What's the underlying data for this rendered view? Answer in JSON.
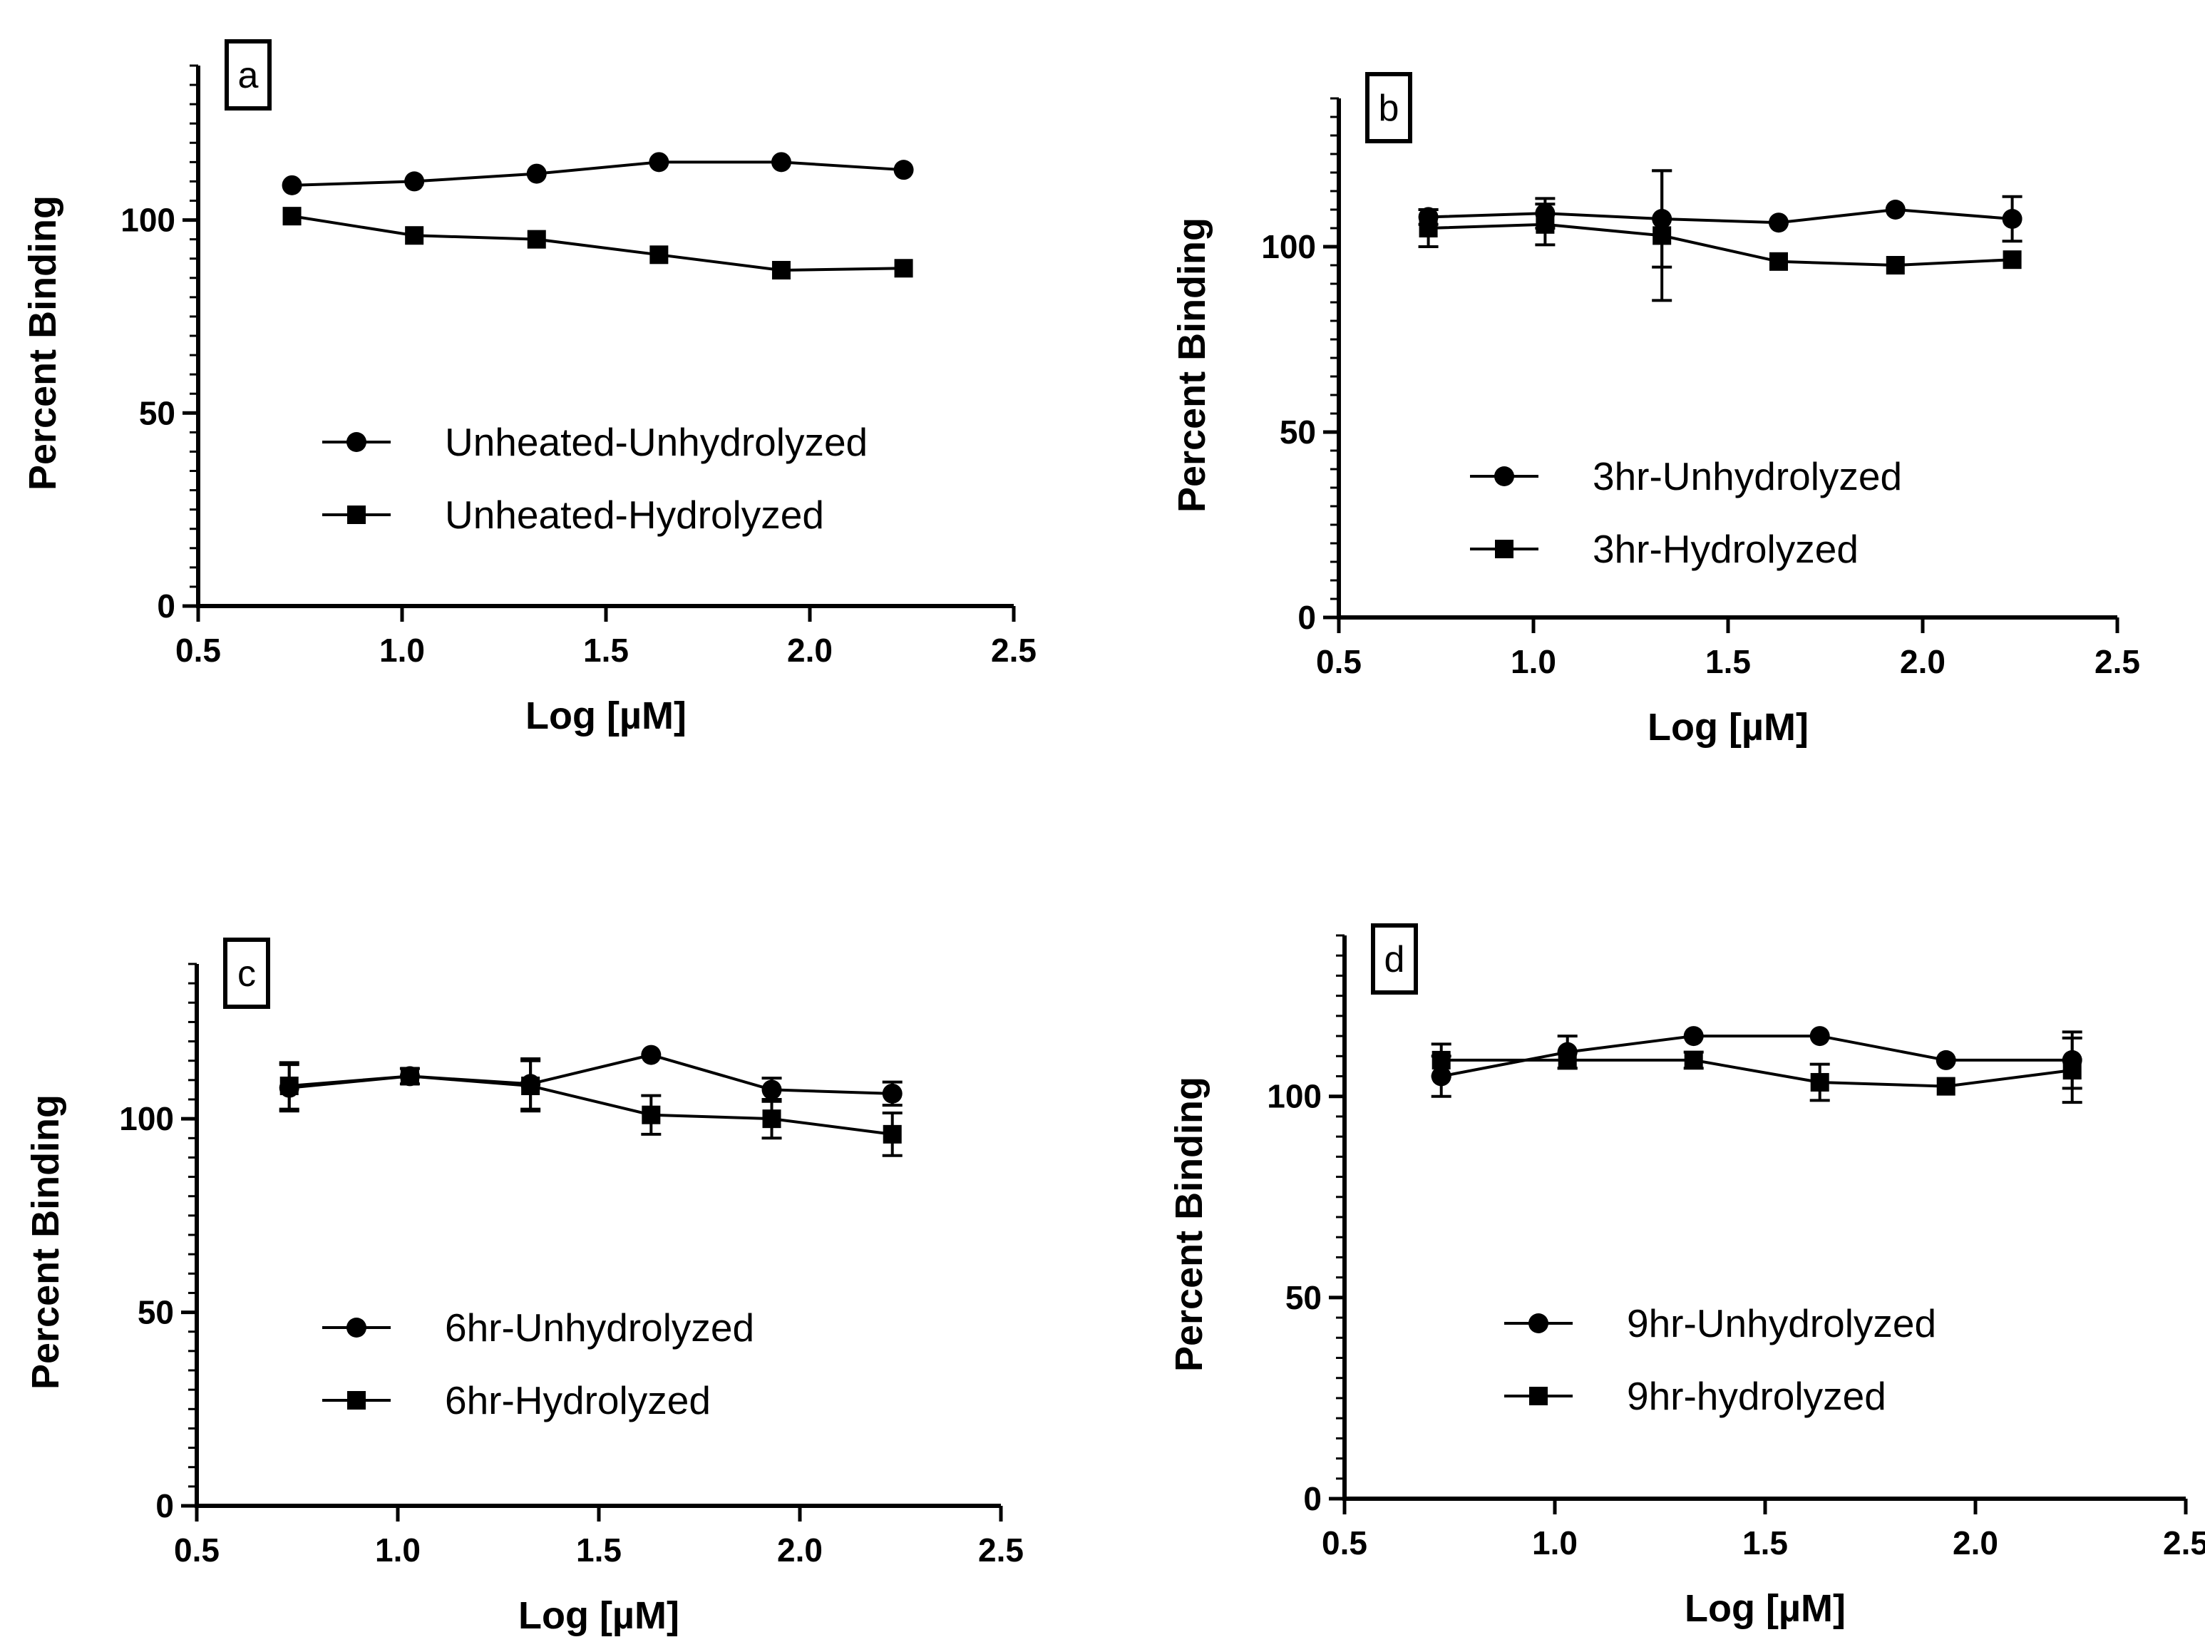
{
  "chart_data": [
    {
      "type": "line",
      "panel_label": "a",
      "xlabel": "Log [µM]",
      "ylabel": "Percent Binding",
      "xlim": [
        0.5,
        2.5
      ],
      "ylim": [
        0,
        140
      ],
      "x_ticks": [
        "0.5",
        "1.0",
        "1.5",
        "2.0",
        "2.5"
      ],
      "y_ticks": [
        "0",
        "50",
        "100"
      ],
      "legend_position": "center",
      "series": [
        {
          "name": "Unheated-Unhydrolyzed",
          "marker": "circle",
          "x": [
            0.73,
            1.03,
            1.33,
            1.63,
            1.93,
            2.23
          ],
          "y": [
            109,
            110,
            112,
            115,
            115,
            113
          ]
        },
        {
          "name": "Unheated-Hydrolyzed",
          "marker": "square",
          "x": [
            0.73,
            1.03,
            1.33,
            1.63,
            1.93,
            2.23
          ],
          "y": [
            101,
            96,
            95,
            91,
            87,
            87.5
          ]
        }
      ]
    },
    {
      "type": "line",
      "panel_label": "b",
      "xlabel": "Log [µM]",
      "ylabel": "Percent Binding",
      "xlim": [
        0.5,
        2.5
      ],
      "ylim": [
        0,
        140
      ],
      "x_ticks": [
        "0.5",
        "1.0",
        "1.5",
        "2.0",
        "2.5"
      ],
      "y_ticks": [
        "0",
        "50",
        "100"
      ],
      "legend_position": "center",
      "series": [
        {
          "name": "3hr-Unhydrolyzed",
          "marker": "circle",
          "x": [
            0.73,
            1.03,
            1.33,
            1.63,
            1.93,
            2.23
          ],
          "y": [
            108,
            109,
            107.5,
            106.5,
            110,
            107.5
          ],
          "err": [
            2,
            4,
            13,
            0,
            0,
            6
          ]
        },
        {
          "name": "3hr-Hydrolyzed",
          "marker": "square",
          "x": [
            0.73,
            1.03,
            1.33,
            1.63,
            1.93,
            2.23
          ],
          "y": [
            105,
            106,
            103,
            96,
            95,
            96.5
          ],
          "err": [
            5,
            5.5,
            17.5,
            0,
            0,
            0
          ]
        }
      ]
    },
    {
      "type": "line",
      "panel_label": "c",
      "xlabel": "Log [µM]",
      "ylabel": "Percent Binding",
      "xlim": [
        0.5,
        2.5
      ],
      "ylim": [
        0,
        140
      ],
      "x_ticks": [
        "0.5",
        "1.0",
        "1.5",
        "2.0",
        "2.5"
      ],
      "y_ticks": [
        "0",
        "50",
        "100"
      ],
      "legend_position": "center",
      "series": [
        {
          "name": "6hr-Unhydrolyzed",
          "marker": "circle",
          "x": [
            0.73,
            1.03,
            1.33,
            1.63,
            1.93,
            2.23
          ],
          "y": [
            108,
            111,
            109,
            116.5,
            107.5,
            106.5
          ],
          "err": [
            6,
            0,
            6.5,
            0,
            3,
            3
          ]
        },
        {
          "name": "6hr-Hydrolyzed",
          "marker": "square",
          "x": [
            0.73,
            1.03,
            1.33,
            1.63,
            1.93,
            2.23
          ],
          "y": [
            108.5,
            111,
            108.5,
            101,
            100,
            96
          ],
          "err": [
            6,
            2,
            6.5,
            5,
            5,
            5.5
          ]
        }
      ]
    },
    {
      "type": "line",
      "panel_label": "d",
      "xlabel": "Log [µM]",
      "ylabel": "Percent Binding",
      "xlim": [
        0.5,
        2.5
      ],
      "ylim": [
        0,
        140
      ],
      "x_ticks": [
        "0.5",
        "1.0",
        "1.5",
        "2.0",
        "2.5"
      ],
      "y_ticks": [
        "0",
        "50",
        "100"
      ],
      "legend_position": "center",
      "series": [
        {
          "name": "9hr-Unhydrolyzed",
          "marker": "circle",
          "x": [
            0.73,
            1.03,
            1.33,
            1.63,
            1.93,
            2.23
          ],
          "y": [
            105,
            111,
            115,
            115,
            109,
            109
          ],
          "err": [
            5,
            4,
            0,
            0,
            0,
            7
          ]
        },
        {
          "name": "9hr-hydrolyzed",
          "marker": "square",
          "x": [
            0.73,
            1.03,
            1.33,
            1.63,
            1.93,
            2.23
          ],
          "y": [
            109,
            109,
            109,
            103.5,
            102.5,
            106.5
          ],
          "err": [
            4,
            2,
            2,
            4.5,
            0,
            8
          ]
        }
      ]
    }
  ]
}
